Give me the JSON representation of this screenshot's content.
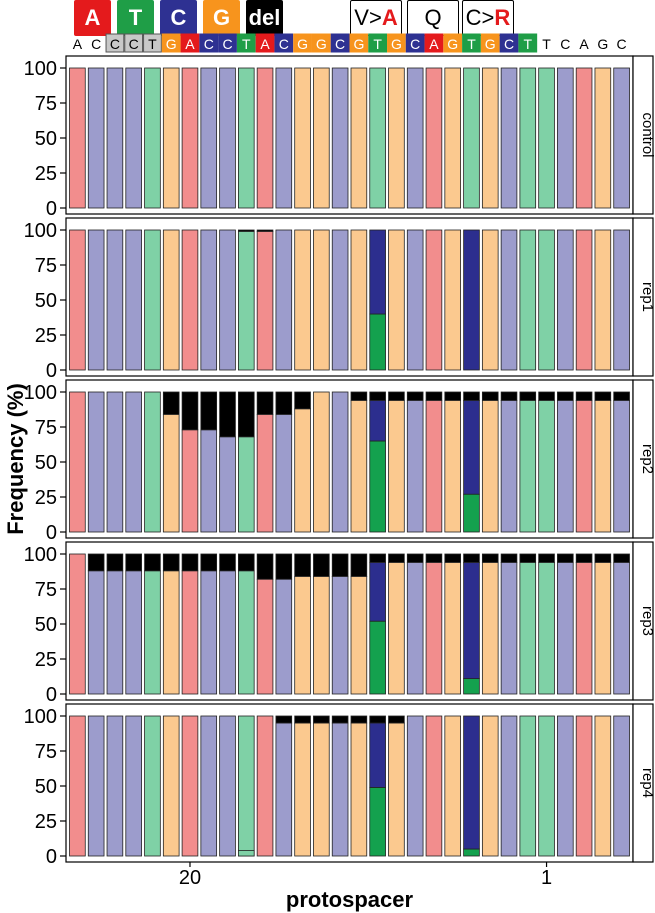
{
  "legend": {
    "base_keys": [
      {
        "label": "A",
        "color": "#e41a1c"
      },
      {
        "label": "T",
        "color": "#1f9e47"
      },
      {
        "label": "C",
        "color": "#2e3192"
      },
      {
        "label": "G",
        "color": "#f7941d"
      },
      {
        "label": "del",
        "color": "#000000"
      }
    ],
    "edit_keys": [
      {
        "prefix": "V>",
        "target": "A"
      },
      {
        "prefix": "Q",
        "target": ""
      },
      {
        "prefix": "C>",
        "target": "R"
      }
    ]
  },
  "colors": {
    "A": "#f28d8d",
    "T": "#7fd1a6",
    "C": "#9c9ccc",
    "G": "#fbc98f",
    "T_edit": "#14a14e",
    "C_edit": "#2c2e8e",
    "del": "#000000",
    "seq_G": "#f7941d",
    "seq_C": "#2e3192",
    "seq_A": "#e41a1c",
    "seq_T": "#1f9e47",
    "seq_pam": "#c8c8c8"
  },
  "chart_data": {
    "type": "bar",
    "ylabel": "Frequency (%)",
    "xlabel": "protospacer",
    "x_tick_labels": [
      {
        "position": 6,
        "label": "20"
      },
      {
        "position": 25,
        "label": "1"
      }
    ],
    "y_ticks": [
      0,
      25,
      50,
      75,
      100
    ],
    "ylim": [
      0,
      100
    ],
    "sequence": [
      "A",
      "C",
      "C",
      "C",
      "T",
      "G",
      "A",
      "C",
      "C",
      "T",
      "A",
      "C",
      "G",
      "G",
      "C",
      "G",
      "T",
      "G",
      "C",
      "A",
      "G",
      "T",
      "G",
      "C",
      "T",
      "T",
      "C",
      "A",
      "G",
      "C"
    ],
    "sequence_styles": [
      "plain",
      "plain",
      "pam",
      "pam",
      "pam",
      "G",
      "A",
      "C",
      "C",
      "T",
      "A",
      "C",
      "G",
      "G",
      "C",
      "G",
      "T",
      "G",
      "C",
      "A",
      "G",
      "T",
      "G",
      "C",
      "T",
      "plain",
      "plain",
      "plain",
      "plain",
      "plain"
    ],
    "facets": [
      {
        "name": "control",
        "deletion": [
          0,
          0,
          0,
          0,
          0,
          0,
          0,
          0,
          0,
          0,
          0,
          0,
          0,
          0,
          0,
          0,
          0,
          0,
          0,
          0,
          0,
          0,
          0,
          0,
          0,
          0,
          0,
          0,
          0,
          0
        ],
        "edits": {}
      },
      {
        "name": "rep1",
        "deletion": [
          0,
          0,
          0,
          0,
          0,
          0,
          0,
          0,
          0,
          1,
          1,
          0,
          0,
          0,
          0,
          0,
          0,
          0,
          0,
          0,
          0,
          0,
          0,
          0,
          0,
          0,
          0,
          0,
          0,
          0
        ],
        "edits": {
          "16": {
            "T": 40,
            "C": 60
          },
          "21": {
            "T": 0,
            "C": 100
          }
        }
      },
      {
        "name": "rep2",
        "deletion": [
          0,
          0,
          0,
          0,
          0,
          16,
          27,
          27,
          32,
          32,
          16,
          16,
          12,
          0,
          0,
          6,
          6,
          6,
          6,
          6,
          6,
          6,
          6,
          6,
          6,
          6,
          6,
          6,
          6,
          6
        ],
        "edits": {
          "16": {
            "T": 65,
            "C": 29
          },
          "21": {
            "T": 27,
            "C": 67
          }
        }
      },
      {
        "name": "rep3",
        "deletion": [
          0,
          12,
          12,
          12,
          12,
          12,
          12,
          12,
          12,
          12,
          18,
          18,
          16,
          16,
          16,
          16,
          6,
          6,
          6,
          6,
          6,
          6,
          6,
          6,
          6,
          6,
          6,
          6,
          6,
          6
        ],
        "edits": {
          "16": {
            "T": 52,
            "C": 42
          },
          "21": {
            "T": 11,
            "C": 83
          }
        }
      },
      {
        "name": "rep4",
        "deletion": [
          0,
          0,
          0,
          0,
          0,
          0,
          0,
          0,
          0,
          0,
          0,
          5,
          5,
          5,
          5,
          5,
          5,
          5,
          0,
          0,
          0,
          0,
          0,
          0,
          0,
          0,
          0,
          0,
          0,
          0
        ],
        "edits": {
          "16": {
            "T": 49,
            "C": 46
          },
          "21": {
            "T": 5,
            "C": 95
          }
        }
      }
    ],
    "extra_segments": {
      "rep4": {
        "9": {
          "T": 4
        }
      }
    }
  }
}
